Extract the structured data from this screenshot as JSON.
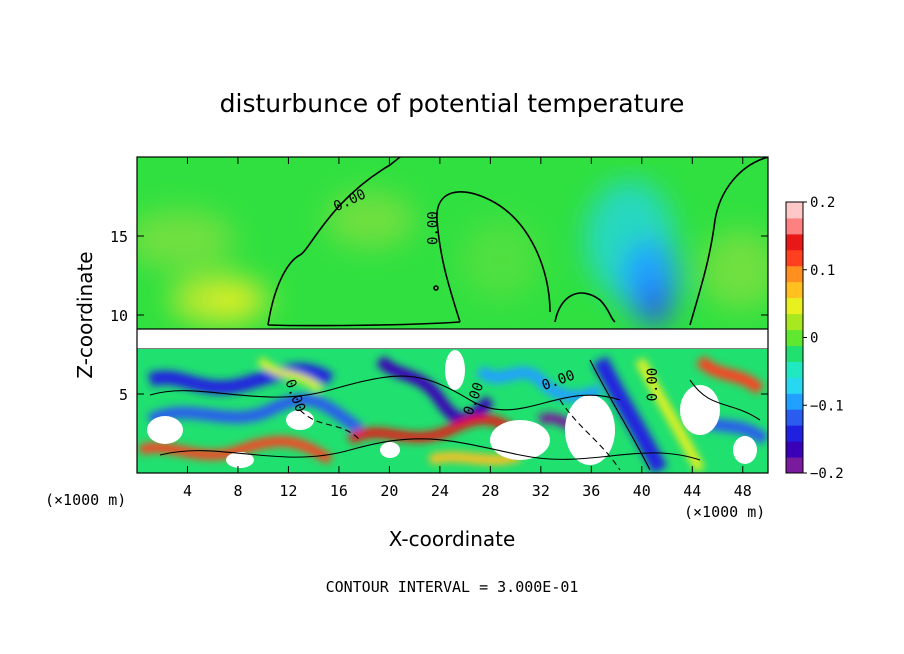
{
  "chart_data": {
    "type": "heatmap",
    "title": "disturbunce of potential temperature",
    "xlabel": "X-coordinate",
    "ylabel": "Z-coordinate",
    "x_unit_left": "(×1000 m)",
    "x_unit_right": "(×1000 m)",
    "x_ticks": [
      "4",
      "8",
      "12",
      "16",
      "20",
      "24",
      "28",
      "32",
      "36",
      "40",
      "44",
      "48"
    ],
    "x_tick_values": [
      4,
      8,
      12,
      16,
      20,
      24,
      28,
      32,
      36,
      40,
      44,
      48
    ],
    "xlim": [
      0,
      50
    ],
    "y_ticks": [
      "5",
      "10",
      "15"
    ],
    "y_tick_values": [
      5,
      10,
      15
    ],
    "ylim": [
      0,
      20
    ],
    "colorbar": {
      "ticks": [
        "0.2",
        "0.1",
        "0",
        "−0.1",
        "−0.2"
      ],
      "tick_values": [
        0.2,
        0.1,
        0,
        -0.1,
        -0.2
      ],
      "range": [
        -0.2,
        0.2
      ]
    },
    "contour_labels": [
      {
        "text": "0.00",
        "x": 17.0,
        "y": 17.0,
        "rotate": -25
      },
      {
        "text": "0.00",
        "x": 23.8,
        "y": 15.5,
        "rotate": -90
      },
      {
        "text": "0.00",
        "x": 12.2,
        "y": 4.8,
        "rotate": 70
      },
      {
        "text": "0.00",
        "x": 27.0,
        "y": 4.6,
        "rotate": -70
      },
      {
        "text": "0.00",
        "x": 33.5,
        "y": 5.6,
        "rotate": -20
      },
      {
        "text": "0.00",
        "x": 41.2,
        "y": 5.6,
        "rotate": -90
      }
    ],
    "footer": "CONTOUR INTERVAL = 3.000E-01"
  },
  "colors": {
    "ramp": [
      "#7a1a9c",
      "#3a00b8",
      "#2020e0",
      "#2a5cf0",
      "#20a0ff",
      "#28d8f0",
      "#20e8c0",
      "#20e070",
      "#60e830",
      "#a8e820",
      "#e8f020",
      "#ffc020",
      "#ff9020",
      "#ff4020",
      "#e81818",
      "#ff8080",
      "#ffc8c8"
    ]
  }
}
